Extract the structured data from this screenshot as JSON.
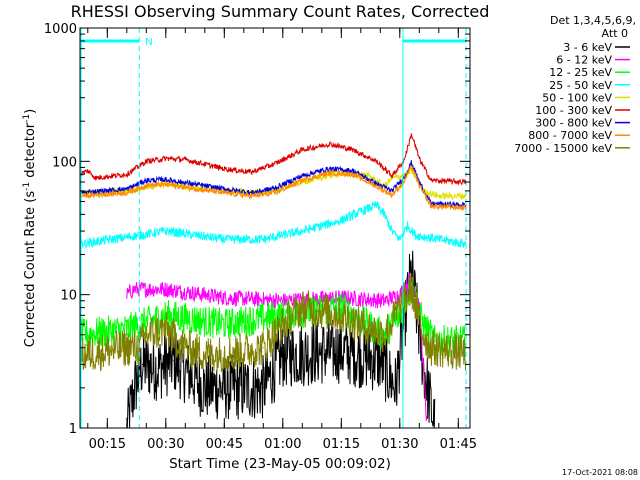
{
  "chart_data": {
    "type": "line",
    "title": "RHESSI Observing Summary Count Rates, Corrected",
    "xlabel": "Start Time (23-May-05 00:09:02)",
    "ylabel_main": "Corrected Count Rate (s",
    "ylabel_sup1": "-1",
    "ylabel_mid": " detector",
    "ylabel_sup2": "-1",
    "ylabel_end": ")",
    "y_scale": "log",
    "ylim": [
      1,
      1000
    ],
    "xlim_minutes": [
      8,
      108
    ],
    "x_ticks": [
      {
        "label": "00:15",
        "min": 15
      },
      {
        "label": "00:30",
        "min": 30
      },
      {
        "label": "00:45",
        "min": 45
      },
      {
        "label": "01:00",
        "min": 60
      },
      {
        "label": "01:15",
        "min": 75
      },
      {
        "label": "01:30",
        "min": 90
      },
      {
        "label": "01:45",
        "min": 105
      }
    ],
    "y_ticks": [
      {
        "label": "1",
        "value": 1
      },
      {
        "label": "10",
        "value": 10
      },
      {
        "label": "100",
        "value": 100
      },
      {
        "label": "1000",
        "value": 1000
      }
    ],
    "markers": {
      "night_label": "N",
      "night_bar": [
        [
          8,
          23.2
        ],
        [
          90.8,
          107
        ]
      ],
      "night_edges": [
        23.2,
        107
      ],
      "day_edges": [
        90.8
      ]
    },
    "legend": {
      "header1": "Det 1,3,4,5,6,9,",
      "header2": "Att 0"
    },
    "series": [
      {
        "name": "3 - 6 keV",
        "color": "#000000",
        "points": [
          [
            20,
            1
          ],
          [
            22,
            2
          ],
          [
            24,
            3
          ],
          [
            28,
            2.8
          ],
          [
            32,
            3.2
          ],
          [
            40,
            2
          ],
          [
            55,
            2
          ],
          [
            60,
            3.5
          ],
          [
            75,
            3.8
          ],
          [
            85,
            3.2
          ],
          [
            89,
            2
          ],
          [
            91,
            6
          ],
          [
            93,
            15
          ],
          [
            96,
            3
          ],
          [
            99,
            1
          ]
        ]
      },
      {
        "name": "6 - 12 keV",
        "color": "#ff00ff",
        "points": [
          [
            20,
            10
          ],
          [
            22,
            11
          ],
          [
            30,
            11
          ],
          [
            45,
            9.5
          ],
          [
            60,
            9
          ],
          [
            75,
            9.5
          ],
          [
            86,
            9
          ],
          [
            90,
            10
          ],
          [
            93,
            13.5
          ],
          [
            95,
            8
          ],
          [
            96,
            3
          ],
          [
            97,
            1
          ]
        ]
      },
      {
        "name": "12 - 25 keV",
        "color": "#00ff00",
        "points": [
          [
            8,
            5
          ],
          [
            20,
            5.5
          ],
          [
            30,
            7
          ],
          [
            45,
            6
          ],
          [
            60,
            7
          ],
          [
            75,
            8
          ],
          [
            86,
            5
          ],
          [
            90,
            7
          ],
          [
            93,
            12
          ],
          [
            96,
            6
          ],
          [
            99,
            4.5
          ],
          [
            107,
            4.5
          ]
        ]
      },
      {
        "name": "25 - 50 keV",
        "color": "#00ffff",
        "points": [
          [
            8,
            24
          ],
          [
            20,
            27
          ],
          [
            30,
            30
          ],
          [
            45,
            26
          ],
          [
            55,
            26
          ],
          [
            65,
            30
          ],
          [
            75,
            36
          ],
          [
            80,
            42
          ],
          [
            84,
            47
          ],
          [
            86,
            40
          ],
          [
            88,
            30
          ],
          [
            90,
            26
          ],
          [
            92,
            33
          ],
          [
            94,
            28
          ],
          [
            100,
            26
          ],
          [
            107,
            24
          ]
        ]
      },
      {
        "name": "50 - 100 keV",
        "color": "#e0e000",
        "points": [
          [
            8,
            58
          ],
          [
            20,
            60
          ],
          [
            30,
            68
          ],
          [
            45,
            60
          ],
          [
            55,
            58
          ],
          [
            65,
            70
          ],
          [
            75,
            82
          ],
          [
            82,
            78
          ],
          [
            86,
            65
          ],
          [
            88,
            75
          ],
          [
            91,
            78
          ],
          [
            93,
            85
          ],
          [
            96,
            60
          ],
          [
            100,
            55
          ],
          [
            107,
            55
          ]
        ]
      },
      {
        "name": "100 - 300 keV",
        "color": "#dd0000",
        "points": [
          [
            8,
            80
          ],
          [
            10,
            85
          ],
          [
            12,
            75
          ],
          [
            20,
            80
          ],
          [
            25,
            100
          ],
          [
            30,
            105
          ],
          [
            35,
            103
          ],
          [
            45,
            88
          ],
          [
            52,
            83
          ],
          [
            58,
            96
          ],
          [
            65,
            122
          ],
          [
            72,
            135
          ],
          [
            78,
            122
          ],
          [
            84,
            100
          ],
          [
            88,
            78
          ],
          [
            91,
            100
          ],
          [
            93,
            160
          ],
          [
            95,
            105
          ],
          [
            98,
            72
          ],
          [
            107,
            70
          ]
        ]
      },
      {
        "name": "300 - 800 keV",
        "color": "#0000dd",
        "points": [
          [
            8,
            58
          ],
          [
            20,
            62
          ],
          [
            25,
            72
          ],
          [
            30,
            73
          ],
          [
            45,
            62
          ],
          [
            52,
            58
          ],
          [
            58,
            63
          ],
          [
            65,
            78
          ],
          [
            72,
            88
          ],
          [
            78,
            85
          ],
          [
            84,
            68
          ],
          [
            88,
            60
          ],
          [
            91,
            75
          ],
          [
            93,
            98
          ],
          [
            95,
            70
          ],
          [
            98,
            48
          ],
          [
            107,
            47
          ]
        ]
      },
      {
        "name": "800 - 7000 keV",
        "color": "#ff8800",
        "points": [
          [
            8,
            55
          ],
          [
            20,
            58
          ],
          [
            25,
            66
          ],
          [
            30,
            67
          ],
          [
            45,
            58
          ],
          [
            52,
            55
          ],
          [
            58,
            58
          ],
          [
            65,
            72
          ],
          [
            72,
            82
          ],
          [
            78,
            80
          ],
          [
            84,
            65
          ],
          [
            88,
            56
          ],
          [
            91,
            70
          ],
          [
            93,
            92
          ],
          [
            95,
            66
          ],
          [
            98,
            46
          ],
          [
            107,
            45
          ]
        ]
      },
      {
        "name": "7000 - 15000 keV",
        "color": "#808000",
        "points": [
          [
            8,
            3.5
          ],
          [
            20,
            4
          ],
          [
            23,
            4
          ],
          [
            25,
            5
          ],
          [
            30,
            5.5
          ],
          [
            35,
            4
          ],
          [
            40,
            3.6
          ],
          [
            45,
            3.6
          ],
          [
            55,
            4
          ],
          [
            60,
            6
          ],
          [
            65,
            8
          ],
          [
            70,
            7.5
          ],
          [
            75,
            7
          ],
          [
            80,
            6
          ],
          [
            86,
            5
          ],
          [
            90,
            8
          ],
          [
            93,
            11
          ],
          [
            96,
            5
          ],
          [
            98,
            4
          ],
          [
            107,
            3.6
          ]
        ]
      }
    ],
    "footer_timestamp": "17-Oct-2021 08:08"
  }
}
